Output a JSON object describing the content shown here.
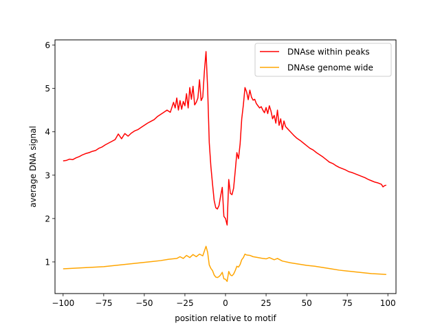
{
  "chart_data": {
    "type": "line",
    "title": "",
    "xlabel": "position relative to motif",
    "ylabel": "average DNA signal",
    "xlim": [
      -105,
      105
    ],
    "ylim": [
      0.27,
      6.12
    ],
    "xticks": [
      -100,
      -75,
      -50,
      -25,
      0,
      25,
      50,
      75,
      100
    ],
    "xtick_labels": [
      "−100",
      "−75",
      "−50",
      "−25",
      "0",
      "25",
      "50",
      "75",
      "100"
    ],
    "yticks": [
      1,
      2,
      3,
      4,
      5,
      6
    ],
    "ytick_labels": [
      "1",
      "2",
      "3",
      "4",
      "5",
      "6"
    ],
    "grid": false,
    "legend_position": "top-right",
    "series": [
      {
        "name": "DNAse within peaks",
        "color": "#ff0000",
        "points": [
          [
            -100,
            3.33
          ],
          [
            -98,
            3.34
          ],
          [
            -96,
            3.37
          ],
          [
            -94,
            3.36
          ],
          [
            -92,
            3.4
          ],
          [
            -90,
            3.43
          ],
          [
            -88,
            3.47
          ],
          [
            -86,
            3.5
          ],
          [
            -84,
            3.52
          ],
          [
            -82,
            3.55
          ],
          [
            -80,
            3.57
          ],
          [
            -78,
            3.62
          ],
          [
            -76,
            3.65
          ],
          [
            -74,
            3.7
          ],
          [
            -72,
            3.74
          ],
          [
            -70,
            3.78
          ],
          [
            -68,
            3.82
          ],
          [
            -66,
            3.95
          ],
          [
            -64,
            3.84
          ],
          [
            -62,
            3.96
          ],
          [
            -60,
            3.9
          ],
          [
            -58,
            3.97
          ],
          [
            -56,
            4.02
          ],
          [
            -54,
            4.05
          ],
          [
            -52,
            4.1
          ],
          [
            -50,
            4.15
          ],
          [
            -48,
            4.2
          ],
          [
            -46,
            4.24
          ],
          [
            -44,
            4.28
          ],
          [
            -42,
            4.35
          ],
          [
            -40,
            4.4
          ],
          [
            -38,
            4.45
          ],
          [
            -36,
            4.5
          ],
          [
            -34,
            4.45
          ],
          [
            -32,
            4.68
          ],
          [
            -31,
            4.55
          ],
          [
            -30,
            4.78
          ],
          [
            -29,
            4.5
          ],
          [
            -28,
            4.72
          ],
          [
            -27,
            4.52
          ],
          [
            -26,
            4.7
          ],
          [
            -25,
            4.6
          ],
          [
            -24,
            4.88
          ],
          [
            -23,
            4.55
          ],
          [
            -22,
            5.02
          ],
          [
            -21,
            4.75
          ],
          [
            -20,
            5.05
          ],
          [
            -19,
            4.62
          ],
          [
            -18,
            4.68
          ],
          [
            -17,
            4.78
          ],
          [
            -16,
            5.2
          ],
          [
            -15,
            4.72
          ],
          [
            -14,
            4.8
          ],
          [
            -13,
            5.4
          ],
          [
            -12,
            5.85
          ],
          [
            -11,
            5.0
          ],
          [
            -10,
            3.75
          ],
          [
            -9,
            3.2
          ],
          [
            -8,
            2.8
          ],
          [
            -7,
            2.42
          ],
          [
            -6,
            2.25
          ],
          [
            -5,
            2.22
          ],
          [
            -4,
            2.3
          ],
          [
            -3,
            2.52
          ],
          [
            -2,
            2.72
          ],
          [
            -1,
            2.05
          ],
          [
            0,
            2.0
          ],
          [
            1,
            1.85
          ],
          [
            2,
            2.9
          ],
          [
            3,
            2.58
          ],
          [
            4,
            2.55
          ],
          [
            5,
            2.7
          ],
          [
            6,
            3.1
          ],
          [
            7,
            3.52
          ],
          [
            8,
            3.38
          ],
          [
            9,
            3.72
          ],
          [
            10,
            4.3
          ],
          [
            11,
            4.62
          ],
          [
            12,
            5.02
          ],
          [
            13,
            4.92
          ],
          [
            14,
            4.74
          ],
          [
            15,
            4.96
          ],
          [
            16,
            4.8
          ],
          [
            17,
            4.73
          ],
          [
            18,
            4.75
          ],
          [
            19,
            4.65
          ],
          [
            20,
            4.6
          ],
          [
            21,
            4.55
          ],
          [
            22,
            4.58
          ],
          [
            23,
            4.5
          ],
          [
            24,
            4.44
          ],
          [
            25,
            4.56
          ],
          [
            26,
            4.42
          ],
          [
            27,
            4.6
          ],
          [
            28,
            4.48
          ],
          [
            29,
            4.3
          ],
          [
            30,
            4.38
          ],
          [
            31,
            4.2
          ],
          [
            32,
            4.5
          ],
          [
            33,
            4.15
          ],
          [
            34,
            4.3
          ],
          [
            35,
            4.05
          ],
          [
            36,
            4.25
          ],
          [
            37,
            4.12
          ],
          [
            38,
            4.08
          ],
          [
            40,
            4.0
          ],
          [
            42,
            3.92
          ],
          [
            44,
            3.85
          ],
          [
            46,
            3.8
          ],
          [
            48,
            3.74
          ],
          [
            50,
            3.68
          ],
          [
            52,
            3.62
          ],
          [
            54,
            3.58
          ],
          [
            56,
            3.52
          ],
          [
            58,
            3.47
          ],
          [
            60,
            3.42
          ],
          [
            62,
            3.36
          ],
          [
            64,
            3.3
          ],
          [
            66,
            3.27
          ],
          [
            68,
            3.22
          ],
          [
            70,
            3.18
          ],
          [
            72,
            3.15
          ],
          [
            74,
            3.12
          ],
          [
            76,
            3.08
          ],
          [
            78,
            3.06
          ],
          [
            80,
            3.03
          ],
          [
            82,
            3.0
          ],
          [
            84,
            2.97
          ],
          [
            86,
            2.94
          ],
          [
            88,
            2.9
          ],
          [
            90,
            2.87
          ],
          [
            92,
            2.84
          ],
          [
            94,
            2.82
          ],
          [
            96,
            2.79
          ],
          [
            97,
            2.73
          ],
          [
            98,
            2.76
          ],
          [
            99,
            2.77
          ]
        ]
      },
      {
        "name": "DNAse genome wide",
        "color": "#ffa500",
        "points": [
          [
            -100,
            0.84
          ],
          [
            -95,
            0.85
          ],
          [
            -90,
            0.86
          ],
          [
            -85,
            0.87
          ],
          [
            -80,
            0.88
          ],
          [
            -75,
            0.89
          ],
          [
            -70,
            0.91
          ],
          [
            -65,
            0.93
          ],
          [
            -60,
            0.95
          ],
          [
            -55,
            0.97
          ],
          [
            -50,
            0.99
          ],
          [
            -45,
            1.01
          ],
          [
            -40,
            1.03
          ],
          [
            -35,
            1.06
          ],
          [
            -30,
            1.08
          ],
          [
            -28,
            1.12
          ],
          [
            -26,
            1.08
          ],
          [
            -24,
            1.15
          ],
          [
            -22,
            1.1
          ],
          [
            -20,
            1.17
          ],
          [
            -18,
            1.12
          ],
          [
            -16,
            1.18
          ],
          [
            -14,
            1.14
          ],
          [
            -12,
            1.36
          ],
          [
            -11,
            1.22
          ],
          [
            -10,
            0.93
          ],
          [
            -9,
            0.85
          ],
          [
            -8,
            0.8
          ],
          [
            -7,
            0.7
          ],
          [
            -6,
            0.65
          ],
          [
            -5,
            0.64
          ],
          [
            -4,
            0.66
          ],
          [
            -3,
            0.7
          ],
          [
            -2,
            0.76
          ],
          [
            -1,
            0.61
          ],
          [
            0,
            0.6
          ],
          [
            1,
            0.55
          ],
          [
            2,
            0.78
          ],
          [
            3,
            0.7
          ],
          [
            4,
            0.68
          ],
          [
            5,
            0.72
          ],
          [
            6,
            0.8
          ],
          [
            7,
            0.9
          ],
          [
            8,
            0.88
          ],
          [
            9,
            0.94
          ],
          [
            10,
            1.05
          ],
          [
            11,
            1.1
          ],
          [
            12,
            1.18
          ],
          [
            13,
            1.16
          ],
          [
            15,
            1.15
          ],
          [
            17,
            1.12
          ],
          [
            20,
            1.1
          ],
          [
            23,
            1.08
          ],
          [
            25,
            1.07
          ],
          [
            27,
            1.1
          ],
          [
            30,
            1.05
          ],
          [
            32,
            1.08
          ],
          [
            35,
            1.02
          ],
          [
            40,
            0.98
          ],
          [
            45,
            0.95
          ],
          [
            50,
            0.92
          ],
          [
            55,
            0.9
          ],
          [
            60,
            0.87
          ],
          [
            65,
            0.84
          ],
          [
            70,
            0.81
          ],
          [
            75,
            0.79
          ],
          [
            80,
            0.77
          ],
          [
            85,
            0.75
          ],
          [
            90,
            0.73
          ],
          [
            95,
            0.72
          ],
          [
            99,
            0.71
          ]
        ]
      }
    ]
  }
}
